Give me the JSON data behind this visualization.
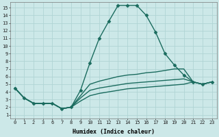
{
  "xlabel": "Humidex (Indice chaleur)",
  "ylabel": "",
  "bg_color": "#cce8e8",
  "line_color": "#1a6b5e",
  "grid_color": "#b0d4d4",
  "xtick_labels": [
    "0",
    "1",
    "2",
    "3",
    "6",
    "7",
    "8",
    "9",
    "10",
    "11",
    "12",
    "13",
    "14",
    "15",
    "16",
    "17",
    "18",
    "19",
    "20",
    "21",
    "22",
    "23"
  ],
  "ytick_labels": [
    "1",
    "2",
    "3",
    "4",
    "5",
    "6",
    "7",
    "8",
    "9",
    "10",
    "11",
    "12",
    "13",
    "14",
    "15"
  ],
  "ylim": [
    0.5,
    15.7
  ],
  "lines": [
    {
      "y": [
        4.5,
        3.2,
        2.5,
        2.5,
        2.5,
        1.8,
        2.0,
        4.2,
        7.8,
        11.0,
        13.2,
        15.3,
        15.3,
        15.3,
        14.0,
        11.8,
        9.0,
        7.5,
        6.2,
        5.3,
        5.0,
        5.3
      ],
      "marker": "D",
      "markersize": 2.5,
      "linewidth": 1.0
    },
    {
      "y": [
        4.5,
        3.2,
        2.5,
        2.5,
        2.5,
        1.8,
        2.0,
        3.5,
        5.0,
        5.4,
        5.7,
        6.0,
        6.2,
        6.3,
        6.5,
        6.6,
        6.8,
        7.0,
        7.0,
        5.3,
        5.0,
        5.3
      ],
      "marker": null,
      "markersize": 0,
      "linewidth": 1.0
    },
    {
      "y": [
        4.5,
        3.2,
        2.5,
        2.5,
        2.5,
        1.8,
        2.0,
        3.2,
        4.2,
        4.5,
        4.7,
        4.9,
        5.1,
        5.2,
        5.3,
        5.4,
        5.5,
        5.6,
        5.7,
        5.3,
        5.0,
        5.3
      ],
      "marker": null,
      "markersize": 0,
      "linewidth": 1.0
    },
    {
      "y": [
        4.5,
        3.2,
        2.5,
        2.5,
        2.5,
        1.8,
        2.0,
        2.8,
        3.5,
        3.8,
        4.0,
        4.2,
        4.4,
        4.5,
        4.6,
        4.7,
        4.8,
        4.9,
        5.0,
        5.3,
        5.0,
        5.3
      ],
      "marker": null,
      "markersize": 0,
      "linewidth": 1.0
    }
  ]
}
